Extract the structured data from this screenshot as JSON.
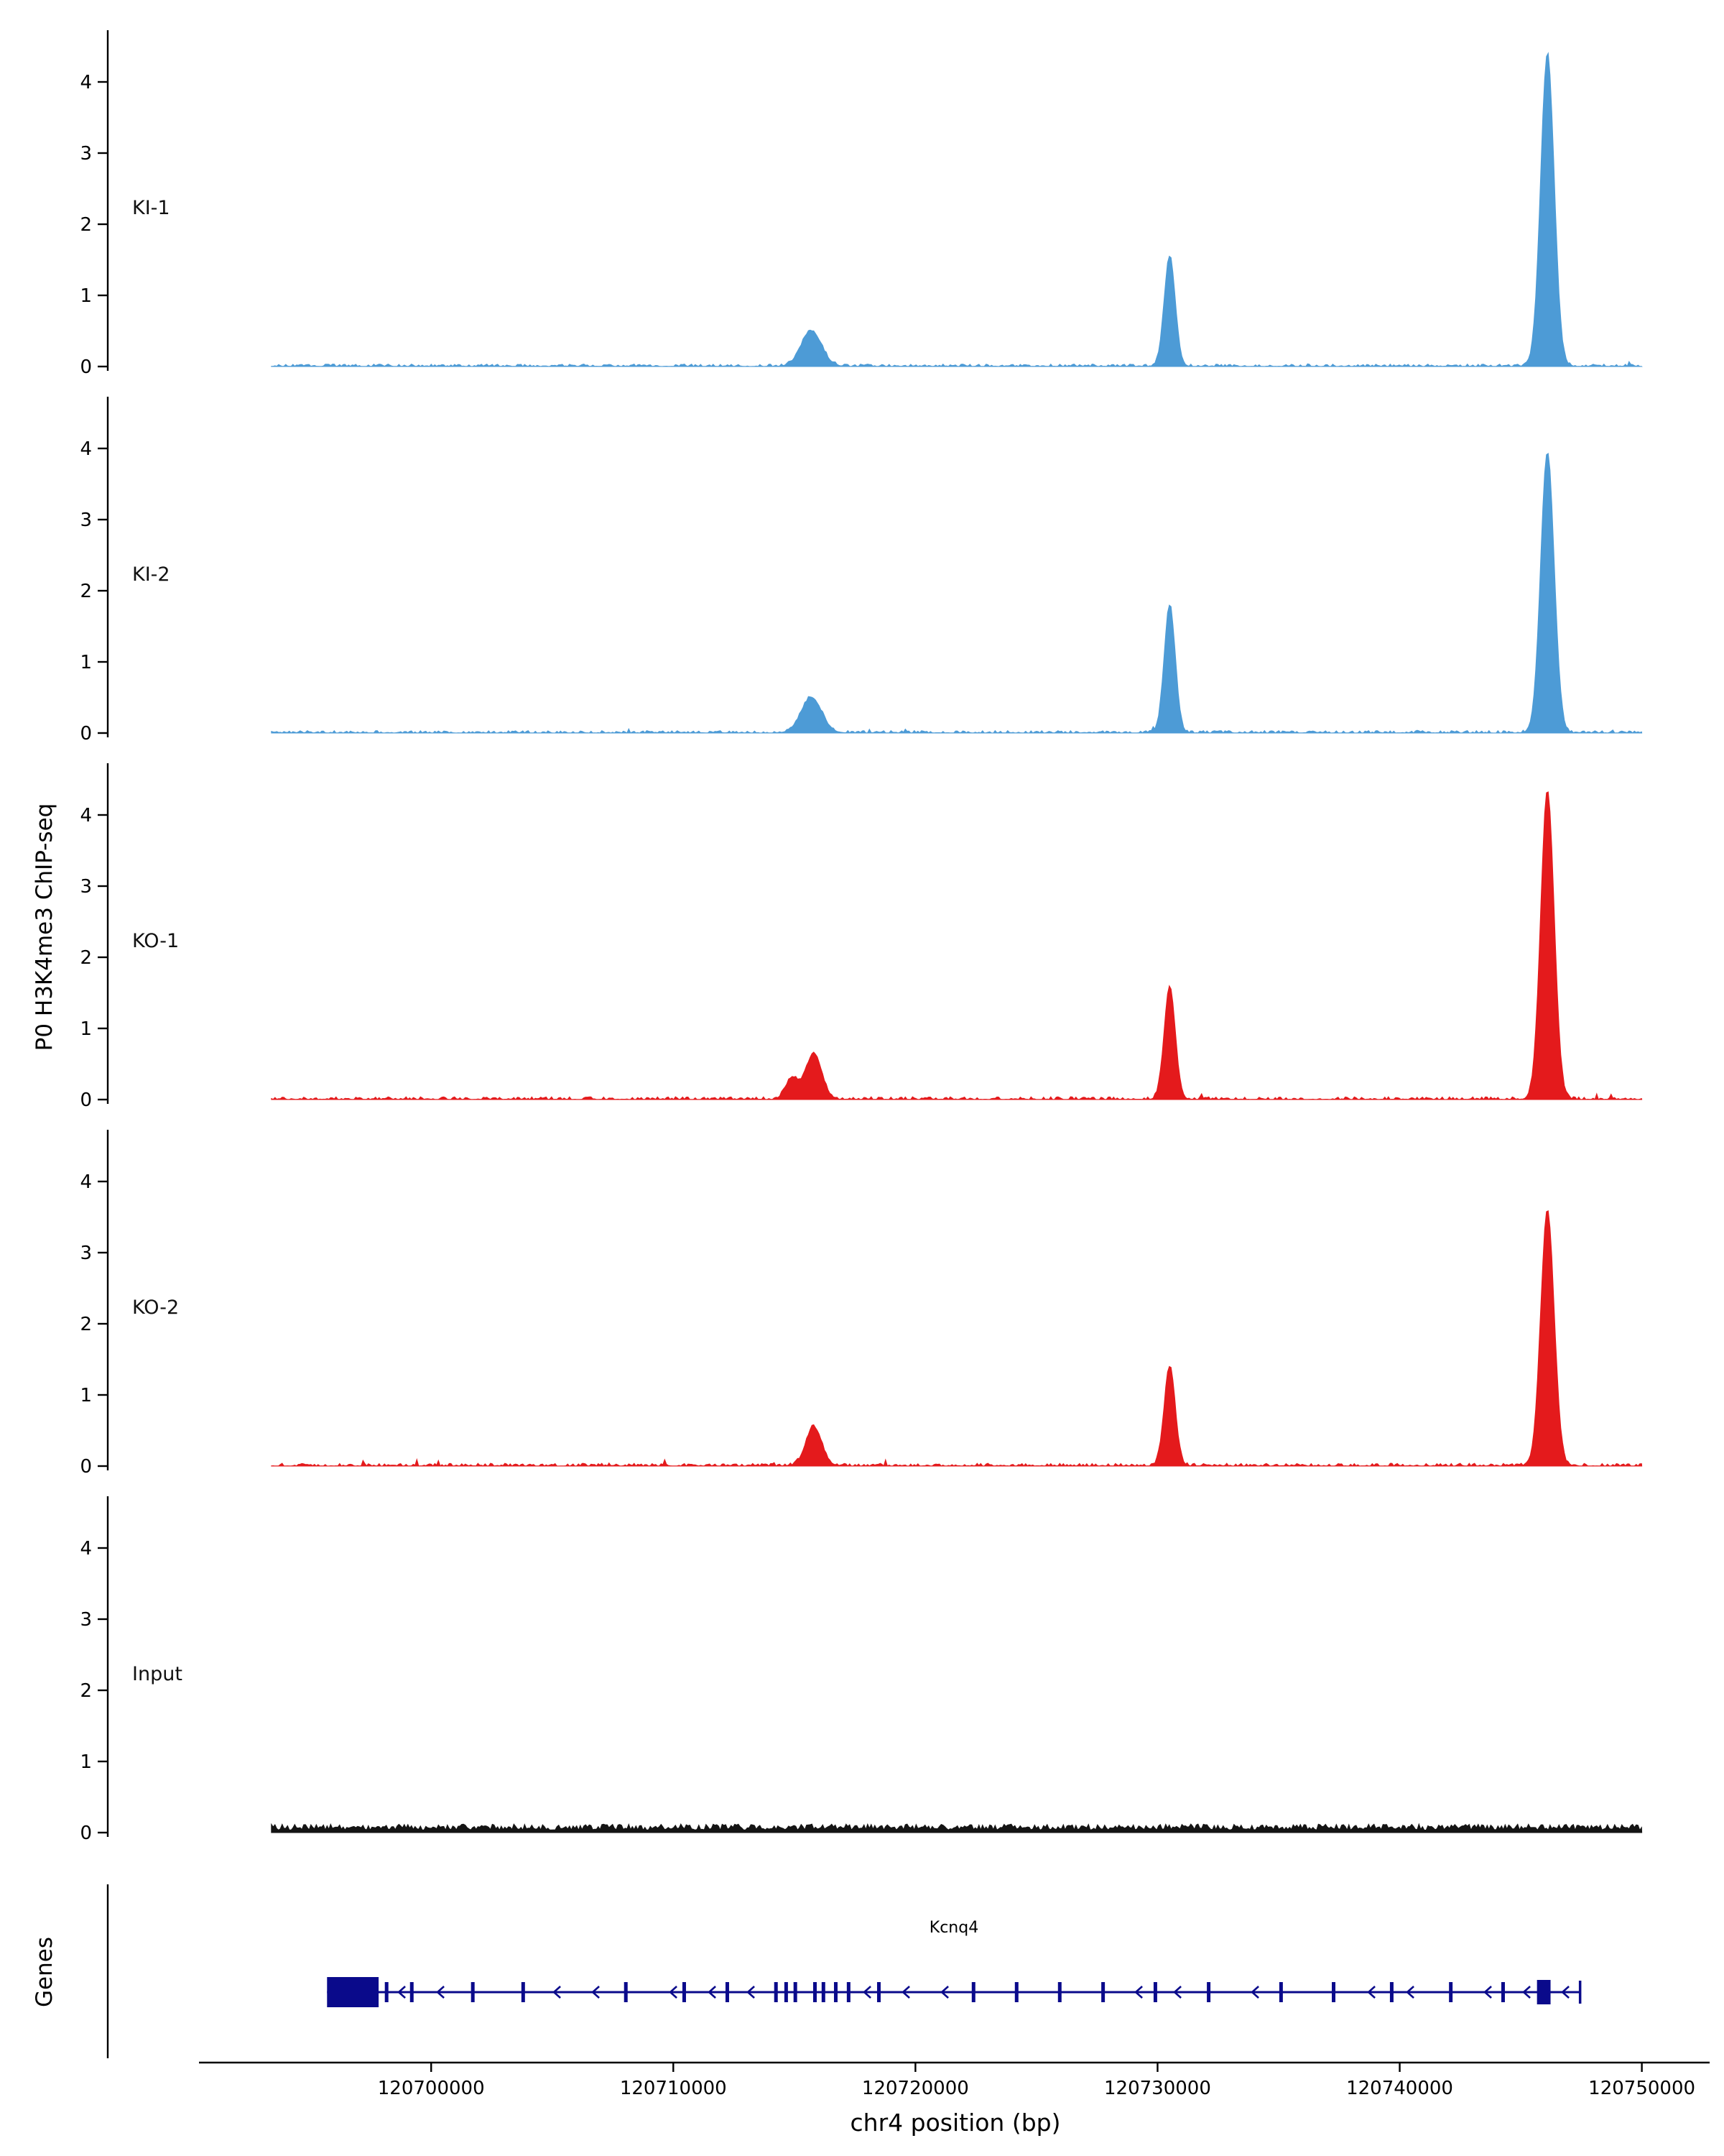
{
  "chart_data": {
    "type": "area",
    "subtype": "genome-browser-coverage-tracks",
    "title": "",
    "ylabel": "P0 H3K4me3 ChIP-seq",
    "xlabel": "chr4 position (bp)",
    "chrom": "chr4",
    "xlim": [
      120690500,
      120752800
    ],
    "x_ticks": [
      120700000,
      120710000,
      120720000,
      120730000,
      120740000,
      120750000
    ],
    "ylim": [
      0,
      4.7
    ],
    "y_ticks": [
      0,
      1,
      2,
      3,
      4
    ],
    "data_range": [
      120693400,
      120750000
    ],
    "grid": false,
    "tracks": [
      {
        "name": "KI-1",
        "color": "#4D9BD6",
        "baseline_noise": 0.035,
        "peaks": [
          {
            "pos": 120715700,
            "height": 0.5,
            "sigma_bp": 420
          },
          {
            "pos": 120730500,
            "height": 1.55,
            "sigma_bp": 230
          },
          {
            "pos": 120746100,
            "height": 4.4,
            "sigma_bp": 280
          }
        ]
      },
      {
        "name": "KI-2",
        "color": "#4D9BD6",
        "baseline_noise": 0.035,
        "peaks": [
          {
            "pos": 120715700,
            "height": 0.5,
            "sigma_bp": 420
          },
          {
            "pos": 120730500,
            "height": 1.8,
            "sigma_bp": 230
          },
          {
            "pos": 120746100,
            "height": 3.95,
            "sigma_bp": 280
          }
        ]
      },
      {
        "name": "KO-1",
        "color": "#E41A1C",
        "baseline_noise": 0.04,
        "peaks": [
          {
            "pos": 120714900,
            "height": 0.3,
            "sigma_bp": 260
          },
          {
            "pos": 120715800,
            "height": 0.65,
            "sigma_bp": 330
          },
          {
            "pos": 120730500,
            "height": 1.6,
            "sigma_bp": 230
          },
          {
            "pos": 120746100,
            "height": 4.35,
            "sigma_bp": 280
          }
        ]
      },
      {
        "name": "KO-2",
        "color": "#E41A1C",
        "baseline_noise": 0.04,
        "peaks": [
          {
            "pos": 120715800,
            "height": 0.55,
            "sigma_bp": 330
          },
          {
            "pos": 120730500,
            "height": 1.4,
            "sigma_bp": 230
          },
          {
            "pos": 120746100,
            "height": 3.6,
            "sigma_bp": 280
          }
        ]
      },
      {
        "name": "Input",
        "color": "#141414",
        "baseline_noise": 0.1,
        "peaks": []
      }
    ],
    "genes_track": {
      "label": "Genes",
      "gene": {
        "name": "Kcnq4",
        "strand": "-",
        "start": 120695700,
        "end": 120747450,
        "color": "#0A0A8B",
        "utr_exon": [
          120695700,
          120697830
        ],
        "cds_box": [
          120745670,
          120746230
        ],
        "exons": [
          120698160,
          120699200,
          120701720,
          120703800,
          120708040,
          120710450,
          120712230,
          120714240,
          120714660,
          120715040,
          120715850,
          120716200,
          120716710,
          120717240,
          120718490,
          120722400,
          120724180,
          120725960,
          120727750,
          120729910,
          120732110,
          120735100,
          120737270,
          120739670,
          120742110,
          120744270
        ]
      }
    }
  }
}
